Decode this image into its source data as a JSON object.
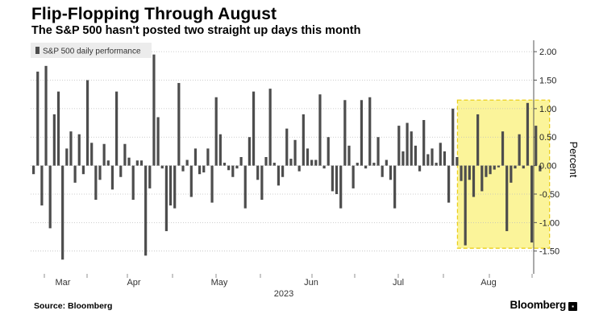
{
  "header": {
    "title": "Flip-Flopping Through August",
    "subtitle": "The S&P 500 hasn't posted two straight up days this month"
  },
  "footer": {
    "source": "Source: Bloomberg",
    "brand": "Bloomberg",
    "brand_mark": "▪"
  },
  "chart_data": {
    "type": "bar",
    "series": [
      {
        "name": "S&P 500 daily performance",
        "color": "#4d4d4d",
        "values": [
          -0.15,
          1.65,
          -0.7,
          1.75,
          -1.1,
          0.9,
          1.3,
          -1.65,
          0.3,
          0.6,
          -0.3,
          0.55,
          -0.15,
          1.5,
          0.4,
          -0.6,
          -0.25,
          0.38,
          0.09,
          -0.42,
          1.3,
          -0.2,
          0.38,
          0.14,
          -0.6,
          0.09,
          0.09,
          -1.58,
          -0.4,
          1.95,
          0.85,
          -0.05,
          -1.15,
          -0.7,
          -0.75,
          1.45,
          -0.1,
          0.1,
          -0.55,
          0.3,
          -0.15,
          -0.12,
          0.3,
          -0.65,
          1.2,
          0.55,
          0.05,
          -0.08,
          -0.2,
          -0.05,
          0.15,
          -0.75,
          0.5,
          1.3,
          -0.25,
          -0.6,
          0.15,
          1.35,
          0.05,
          -0.35,
          -0.2,
          0.65,
          0.12,
          0.45,
          -0.1,
          0.9,
          0.3,
          0.1,
          0.1,
          1.25,
          -0.05,
          0.5,
          -0.45,
          -0.5,
          -0.75,
          1.15,
          0.35,
          -0.4,
          0.05,
          1.15,
          -0.05,
          1.2,
          0.05,
          0.5,
          -0.2,
          0.1,
          -0.25,
          -0.75,
          0.7,
          0.25,
          0.75,
          0.6,
          0.35,
          -0.1,
          0.8,
          0.2,
          0.3,
          0.05,
          0.4,
          0.25,
          -0.65,
          1.0,
          0.15,
          -0.27,
          -1.4,
          -0.25,
          -0.55,
          0.9,
          -0.45,
          -0.2,
          -0.15,
          -0.07,
          -0.03,
          0.6,
          -1.15,
          -0.3,
          -0.05,
          0.55,
          -0.05,
          1.1,
          -1.35,
          0.7,
          -0.1
        ]
      }
    ],
    "x_axis": {
      "tick_labels": [
        "Mar",
        "Apr",
        "May",
        "Jun",
        "Jul",
        "Aug"
      ],
      "year_label": "2023"
    },
    "y_axis": {
      "label": "Percent",
      "position": "right",
      "ylim": [
        -1.9,
        2.2
      ],
      "ticks": [
        2.0,
        1.5,
        1.0,
        0.5,
        0.0,
        -0.5,
        -1.0,
        -1.5
      ],
      "tick_labels": [
        "2.00",
        "1.50",
        "1.00",
        "0.50",
        "0.00",
        "-0.50",
        "-1.00",
        "-1.50"
      ]
    },
    "grid": true,
    "legend": {
      "placement": "top-left",
      "entries": [
        "S&P 500 daily performance"
      ]
    },
    "highlight": {
      "label": "August",
      "start_index": 103,
      "end_index": 123,
      "ylim": [
        -1.45,
        1.15
      ],
      "fill": "#fbf49a",
      "border": "#ebcf1c"
    }
  }
}
